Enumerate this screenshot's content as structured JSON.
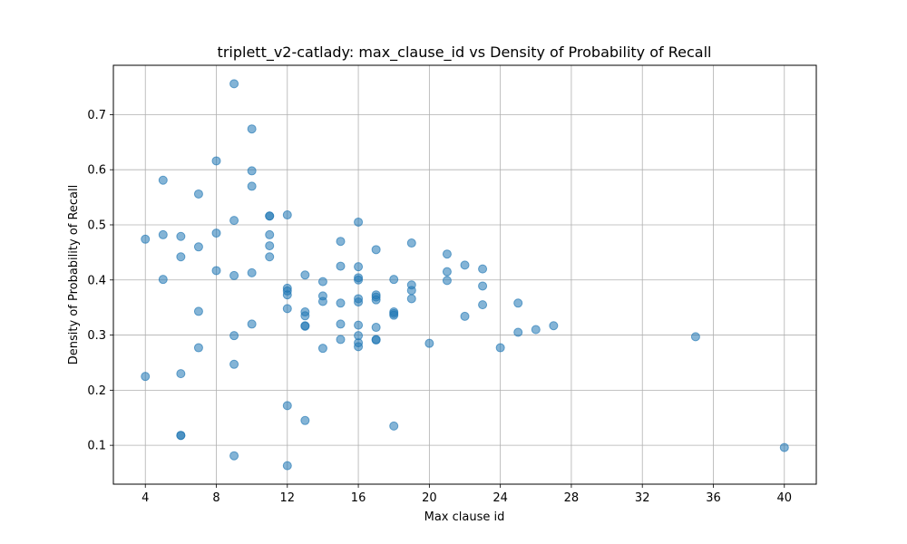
{
  "chart_data": {
    "type": "scatter",
    "title": "triplett_v2-catlady: max_clause_id vs Density of Probability of Recall",
    "xlabel": "Max clause id",
    "ylabel": "Density of Probability of Recall",
    "xlim": [
      2.2,
      41.8
    ],
    "ylim": [
      0.0295,
      0.7895
    ],
    "xticks": [
      4,
      8,
      12,
      16,
      20,
      24,
      28,
      32,
      36,
      40
    ],
    "yticks": [
      0.1,
      0.2,
      0.3,
      0.4,
      0.5,
      0.6,
      0.7
    ],
    "grid": true,
    "marker_color": "#1f77b4",
    "marker_alpha": 0.55,
    "points": [
      [
        4,
        0.474
      ],
      [
        4,
        0.225
      ],
      [
        5,
        0.581
      ],
      [
        5,
        0.482
      ],
      [
        5,
        0.401
      ],
      [
        6,
        0.479
      ],
      [
        6,
        0.442
      ],
      [
        6,
        0.23
      ],
      [
        6,
        0.118
      ],
      [
        6,
        0.118
      ],
      [
        7,
        0.556
      ],
      [
        7,
        0.46
      ],
      [
        7,
        0.343
      ],
      [
        7,
        0.277
      ],
      [
        8,
        0.616
      ],
      [
        8,
        0.485
      ],
      [
        8,
        0.417
      ],
      [
        9,
        0.756
      ],
      [
        9,
        0.508
      ],
      [
        9,
        0.408
      ],
      [
        9,
        0.299
      ],
      [
        9,
        0.247
      ],
      [
        9,
        0.081
      ],
      [
        10,
        0.674
      ],
      [
        10,
        0.598
      ],
      [
        10,
        0.57
      ],
      [
        10,
        0.413
      ],
      [
        10,
        0.32
      ],
      [
        11,
        0.516
      ],
      [
        11,
        0.516
      ],
      [
        11,
        0.482
      ],
      [
        11,
        0.462
      ],
      [
        11,
        0.442
      ],
      [
        12,
        0.518
      ],
      [
        12,
        0.385
      ],
      [
        12,
        0.38
      ],
      [
        12,
        0.373
      ],
      [
        12,
        0.348
      ],
      [
        12,
        0.172
      ],
      [
        12,
        0.063
      ],
      [
        13,
        0.409
      ],
      [
        13,
        0.342
      ],
      [
        13,
        0.335
      ],
      [
        13,
        0.317
      ],
      [
        13,
        0.316
      ],
      [
        13,
        0.145
      ],
      [
        14,
        0.397
      ],
      [
        14,
        0.371
      ],
      [
        14,
        0.361
      ],
      [
        14,
        0.276
      ],
      [
        15,
        0.47
      ],
      [
        15,
        0.425
      ],
      [
        15,
        0.358
      ],
      [
        15,
        0.32
      ],
      [
        15,
        0.292
      ],
      [
        16,
        0.505
      ],
      [
        16,
        0.424
      ],
      [
        16,
        0.404
      ],
      [
        16,
        0.4
      ],
      [
        16,
        0.366
      ],
      [
        16,
        0.36
      ],
      [
        16,
        0.318
      ],
      [
        16,
        0.299
      ],
      [
        16,
        0.286
      ],
      [
        16,
        0.279
      ],
      [
        17,
        0.455
      ],
      [
        17,
        0.373
      ],
      [
        17,
        0.369
      ],
      [
        17,
        0.364
      ],
      [
        17,
        0.314
      ],
      [
        17,
        0.292
      ],
      [
        17,
        0.291
      ],
      [
        18,
        0.401
      ],
      [
        18,
        0.342
      ],
      [
        18,
        0.339
      ],
      [
        18,
        0.336
      ],
      [
        18,
        0.135
      ],
      [
        19,
        0.467
      ],
      [
        19,
        0.391
      ],
      [
        19,
        0.381
      ],
      [
        19,
        0.366
      ],
      [
        20,
        0.285
      ],
      [
        21,
        0.447
      ],
      [
        21,
        0.415
      ],
      [
        21,
        0.399
      ],
      [
        22,
        0.427
      ],
      [
        22,
        0.334
      ],
      [
        23,
        0.42
      ],
      [
        23,
        0.389
      ],
      [
        23,
        0.355
      ],
      [
        24,
        0.277
      ],
      [
        25,
        0.358
      ],
      [
        25,
        0.305
      ],
      [
        26,
        0.31
      ],
      [
        27,
        0.317
      ],
      [
        35,
        0.297
      ],
      [
        40,
        0.096
      ]
    ]
  }
}
